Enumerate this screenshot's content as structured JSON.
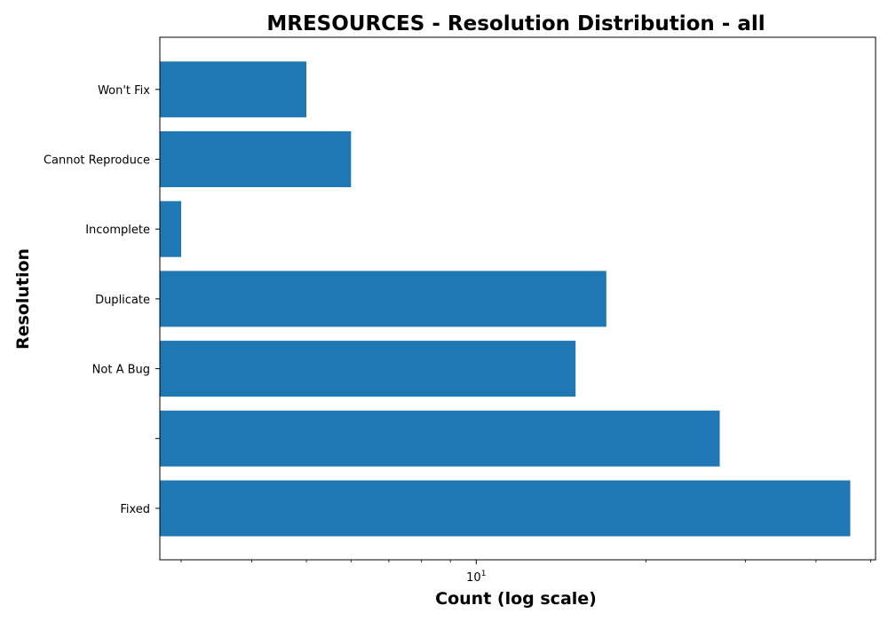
{
  "chart_data": {
    "type": "bar",
    "orientation": "horizontal",
    "title": "MRESOURCES - Resolution Distribution - all",
    "xlabel": "Count (log scale)",
    "ylabel": "Resolution",
    "xscale": "log",
    "xlim": [
      2.75,
      51
    ],
    "x_tick_labels": [
      {
        "value": 10,
        "base": "10",
        "exponent": "1"
      }
    ],
    "categories": [
      "Fixed",
      "",
      "Not A Bug",
      "Duplicate",
      "Incomplete",
      "Cannot Reproduce",
      "Won't Fix"
    ],
    "values": [
      46,
      27,
      15,
      17,
      3,
      6,
      5
    ],
    "bar_color": "#1f77b4",
    "grid": false,
    "legend": "none"
  }
}
